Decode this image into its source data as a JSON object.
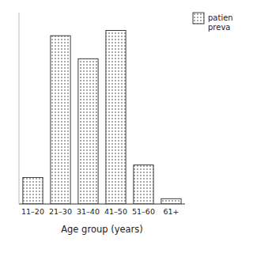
{
  "chart_data": {
    "type": "bar",
    "categories": [
      "11–20",
      "21–30",
      "31–40",
      "41–50",
      "51–60",
      "61+"
    ],
    "series": [
      {
        "name": "patien\npreva",
        "color": "#ffffff",
        "values": [
          15,
          95,
          82,
          98,
          22,
          3
        ]
      }
    ],
    "xlabel": "Age group (years)",
    "ylim": [
      0,
      108
    ],
    "legend": "upper right",
    "tick_labels": "x"
  }
}
